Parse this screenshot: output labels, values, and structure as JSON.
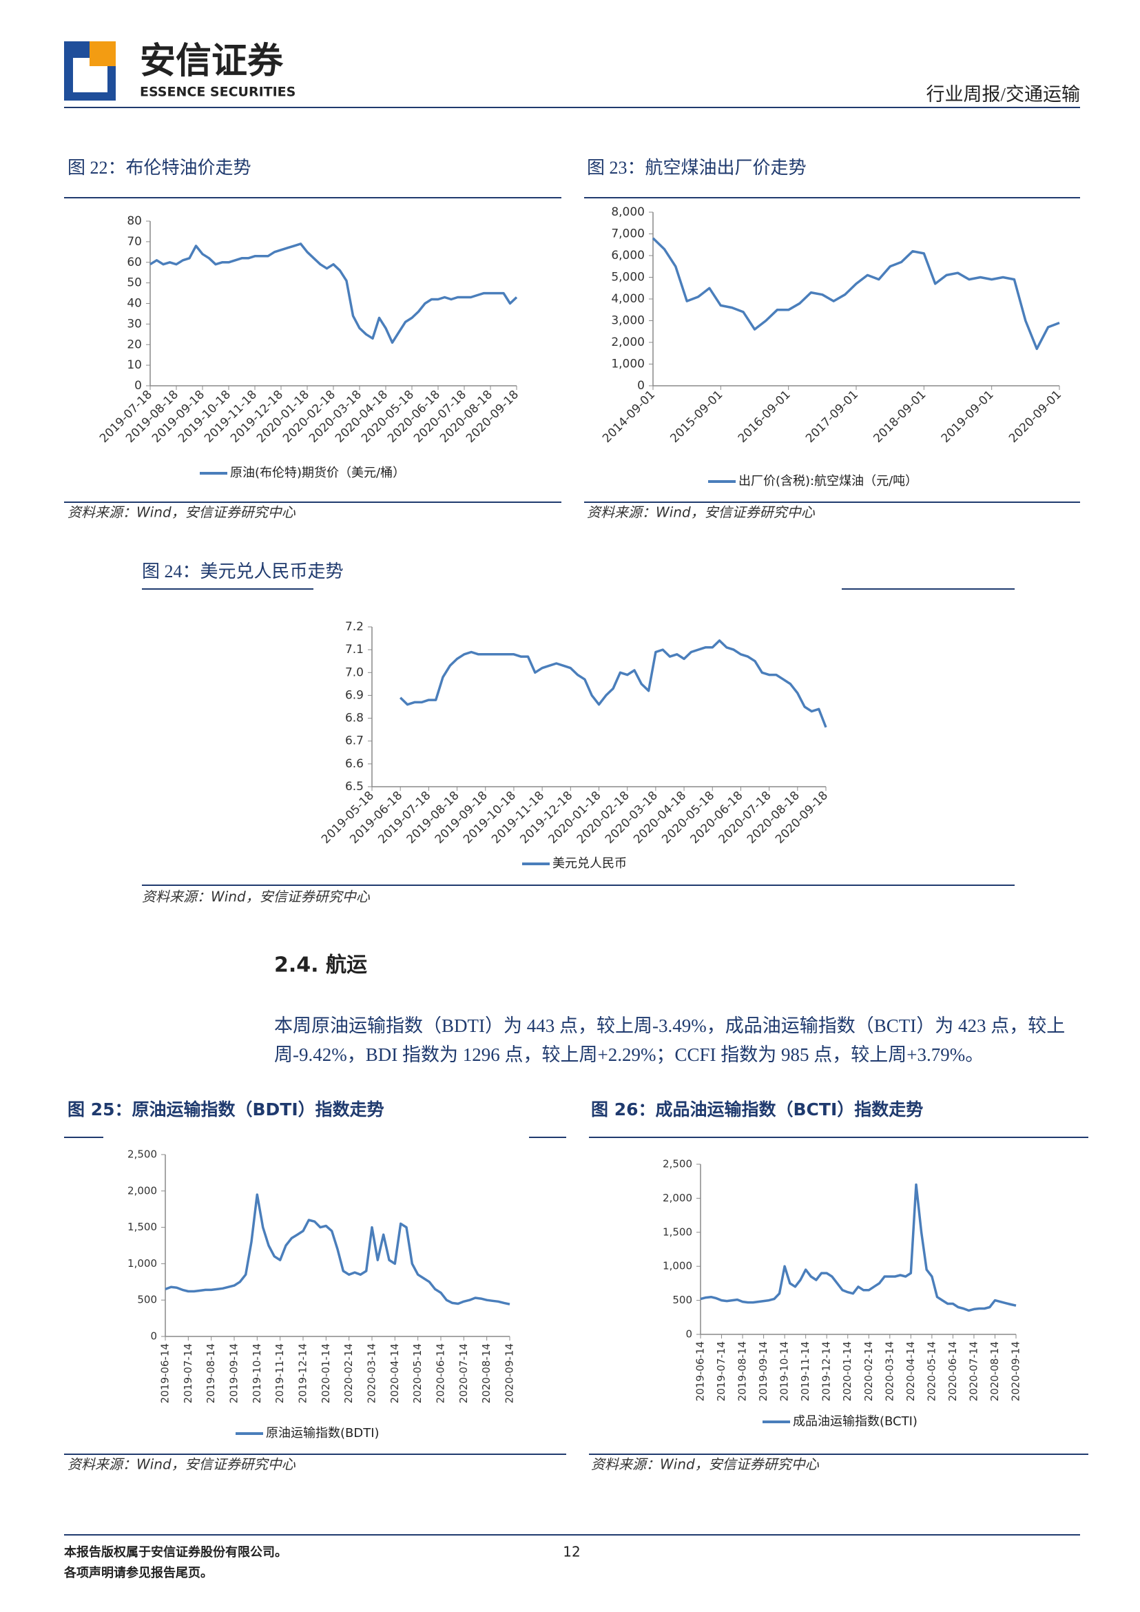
{
  "header": {
    "logo_cn": "安信证券",
    "logo_en": "ESSENCE SECURITIES",
    "report_type": "行业周报/交通运输"
  },
  "section": {
    "heading": "2.4. 航运",
    "paragraph": "本周原油运输指数（BDTI）为 443 点，较上周-3.49%，成品油运输指数（BCTI）为 423 点，较上周-9.42%，BDI 指数为 1296 点，较上周+2.29%；CCFI 指数为 985 点，较上周+3.79%。"
  },
  "footer": {
    "copyright": "本报告版权属于安信证券股份有限公司。",
    "notice": "各项声明请参见报告尾页。",
    "page": "12"
  },
  "chart_data": [
    {
      "type": "line",
      "title": "图 22：布伦特油价走势",
      "source": "资料来源：Wind，安信证券研究中心",
      "categories": [
        "2019-07-18",
        null,
        null,
        null,
        "2019-08-18",
        null,
        null,
        null,
        "2019-09-18",
        null,
        null,
        null,
        "2019-10-18",
        null,
        null,
        null,
        "2019-11-18",
        null,
        null,
        null,
        "2019-12-18",
        null,
        null,
        null,
        "2020-01-18",
        null,
        null,
        null,
        "2020-02-18",
        null,
        null,
        null,
        "2020-03-18",
        null,
        null,
        null,
        "2020-04-18",
        null,
        null,
        null,
        "2020-05-18",
        null,
        null,
        null,
        "2020-06-18",
        null,
        null,
        null,
        "2020-07-18",
        null,
        null,
        null,
        "2020-08-18",
        null,
        null,
        null,
        "2020-09-18"
      ],
      "series": [
        {
          "name": "原油(布伦特)期货价（美元/桶）",
          "color": "#4a7ebb",
          "values": [
            59,
            61,
            59,
            60,
            59,
            61,
            62,
            68,
            64,
            62,
            59,
            60,
            60,
            61,
            62,
            62,
            63,
            63,
            63,
            65,
            66,
            67,
            68,
            69,
            65,
            62,
            59,
            57,
            59,
            56,
            51,
            34,
            28,
            25,
            23,
            33,
            28,
            21,
            26,
            31,
            33,
            36,
            40,
            42,
            42,
            43,
            42,
            43,
            43,
            43,
            44,
            45,
            45,
            45,
            45,
            40,
            43
          ]
        }
      ],
      "ylim": [
        0,
        80
      ],
      "yticks": [
        0,
        10,
        20,
        30,
        40,
        50,
        60,
        70,
        80
      ]
    },
    {
      "type": "line",
      "title": "图 23：航空煤油出厂价走势",
      "source": "资料来源：Wind，安信证券研究中心",
      "categories": [
        "2014-09-01",
        null,
        null,
        null,
        null,
        null,
        "2015-09-01",
        null,
        null,
        null,
        null,
        null,
        "2016-09-01",
        null,
        null,
        null,
        null,
        null,
        "2017-09-01",
        null,
        null,
        null,
        null,
        null,
        "2018-09-01",
        null,
        null,
        null,
        null,
        null,
        "2019-09-01",
        null,
        null,
        null,
        null,
        null,
        "2020-09-01"
      ],
      "series": [
        {
          "name": "出厂价(含税):航空煤油（元/吨）",
          "color": "#4a7ebb",
          "values": [
            6800,
            6300,
            5500,
            3900,
            4100,
            4500,
            3700,
            3600,
            3400,
            2600,
            3000,
            3500,
            3500,
            3800,
            4300,
            4200,
            3900,
            4200,
            4700,
            5100,
            4900,
            5500,
            5700,
            6200,
            6100,
            4700,
            5100,
            5200,
            4900,
            5000,
            4900,
            5000,
            4900,
            3000,
            1700,
            2700,
            2900
          ]
        }
      ],
      "ylim": [
        0,
        8000
      ],
      "yticks": [
        0,
        {
          "value": 1000,
          "label": "1,000"
        },
        {
          "value": 2000,
          "label": "2,000"
        },
        {
          "value": 3000,
          "label": "3,000"
        },
        {
          "value": 4000,
          "label": "4,000"
        },
        {
          "value": 5000,
          "label": "5,000"
        },
        {
          "value": 6000,
          "label": "6,000"
        },
        {
          "value": 7000,
          "label": "7,000"
        },
        {
          "value": 8000,
          "label": "8,000"
        }
      ]
    },
    {
      "type": "line",
      "title": "图 24：美元兑人民币走势",
      "source": "资料来源：Wind，安信证券研究中心",
      "categories": [
        "2019-05-18",
        null,
        null,
        null,
        "2019-06-18",
        null,
        null,
        null,
        "2019-07-18",
        null,
        null,
        null,
        "2019-08-18",
        null,
        null,
        null,
        "2019-09-18",
        null,
        null,
        null,
        "2019-10-18",
        null,
        null,
        null,
        "2019-11-18",
        null,
        null,
        null,
        "2019-12-18",
        null,
        null,
        null,
        "2020-01-18",
        null,
        null,
        null,
        "2020-02-18",
        null,
        null,
        null,
        "2020-03-18",
        null,
        null,
        null,
        "2020-04-18",
        null,
        null,
        null,
        "2020-05-18",
        null,
        null,
        null,
        "2020-06-18",
        null,
        null,
        null,
        "2020-07-18",
        null,
        null,
        null,
        "2020-08-18",
        null,
        null,
        null,
        "2020-09-18"
      ],
      "series": [
        {
          "name": "美元兑人民币",
          "color": "#4a7ebb",
          "values": [
            null,
            null,
            null,
            null,
            6.89,
            6.86,
            6.87,
            6.87,
            6.88,
            6.88,
            6.98,
            7.03,
            7.06,
            7.08,
            7.09,
            7.08,
            7.08,
            7.08,
            7.08,
            7.08,
            7.08,
            7.07,
            7.07,
            7.0,
            7.02,
            7.03,
            7.04,
            7.03,
            7.02,
            6.99,
            6.97,
            6.9,
            6.86,
            6.9,
            6.93,
            7.0,
            6.99,
            7.01,
            6.95,
            6.92,
            7.09,
            7.1,
            7.07,
            7.08,
            7.06,
            7.09,
            7.1,
            7.11,
            7.11,
            7.14,
            7.11,
            7.1,
            7.08,
            7.07,
            7.05,
            7.0,
            6.99,
            6.99,
            6.97,
            6.95,
            6.91,
            6.85,
            6.83,
            6.84,
            6.76
          ]
        }
      ],
      "ylim": [
        6.5,
        7.2
      ],
      "yticks": [
        6.5,
        6.6,
        6.7,
        6.8,
        6.9,
        {
          "value": 7,
          "label": "7.0"
        },
        7.1,
        7.2
      ]
    },
    {
      "type": "line",
      "title": "图 25：原油运输指数（BDTI）指数走势",
      "source": "资料来源：Wind，安信证券研究中心",
      "categories": [
        "2019-06-14",
        null,
        null,
        null,
        "2019-07-14",
        null,
        null,
        null,
        "2019-08-14",
        null,
        null,
        null,
        "2019-09-14",
        null,
        null,
        null,
        "2019-10-14",
        null,
        null,
        null,
        "2019-11-14",
        null,
        null,
        null,
        "2019-12-14",
        null,
        null,
        null,
        "2020-01-14",
        null,
        null,
        null,
        "2020-02-14",
        null,
        null,
        null,
        "2020-03-14",
        null,
        null,
        null,
        "2020-04-14",
        null,
        null,
        null,
        "2020-05-14",
        null,
        null,
        null,
        "2020-06-14",
        null,
        null,
        null,
        "2020-07-14",
        null,
        null,
        null,
        "2020-08-14",
        null,
        null,
        null,
        "2020-09-14"
      ],
      "series": [
        {
          "name": "原油运输指数(BDTI)",
          "color": "#4a7ebb",
          "values": [
            650,
            680,
            670,
            640,
            620,
            620,
            630,
            640,
            640,
            650,
            660,
            680,
            700,
            750,
            850,
            1300,
            1950,
            1500,
            1250,
            1100,
            1050,
            1250,
            1350,
            1400,
            1450,
            1600,
            1580,
            1500,
            1520,
            1450,
            1200,
            900,
            850,
            880,
            850,
            900,
            1500,
            1050,
            1400,
            1050,
            1000,
            1550,
            1500,
            1000,
            850,
            800,
            750,
            650,
            600,
            500,
            460,
            450,
            480,
            500,
            530,
            520,
            500,
            490,
            480,
            460,
            443
          ]
        }
      ],
      "ylim": [
        0,
        2500
      ],
      "yticks": [
        0,
        500,
        {
          "value": 1000,
          "label": "1,000"
        },
        {
          "value": 1500,
          "label": "1,500"
        },
        {
          "value": 2000,
          "label": "2,000"
        },
        {
          "value": 2500,
          "label": "2,500"
        }
      ]
    },
    {
      "type": "line",
      "title": "图 26：成品油运输指数（BCTI）指数走势",
      "source": "资料来源：Wind，安信证券研究中心",
      "categories": [
        "2019-06-14",
        null,
        null,
        null,
        "2019-07-14",
        null,
        null,
        null,
        "2019-08-14",
        null,
        null,
        null,
        "2019-09-14",
        null,
        null,
        null,
        "2019-10-14",
        null,
        null,
        null,
        "2019-11-14",
        null,
        null,
        null,
        "2019-12-14",
        null,
        null,
        null,
        "2020-01-14",
        null,
        null,
        null,
        "2020-02-14",
        null,
        null,
        null,
        "2020-03-14",
        null,
        null,
        null,
        "2020-04-14",
        null,
        null,
        null,
        "2020-05-14",
        null,
        null,
        null,
        "2020-06-14",
        null,
        null,
        null,
        "2020-07-14",
        null,
        null,
        null,
        "2020-08-14",
        null,
        null,
        null,
        "2020-09-14"
      ],
      "series": [
        {
          "name": "成品油运输指数(BCTI)",
          "color": "#4a7ebb",
          "values": [
            520,
            540,
            550,
            530,
            500,
            490,
            500,
            510,
            480,
            470,
            470,
            480,
            490,
            500,
            520,
            600,
            1000,
            750,
            700,
            800,
            950,
            850,
            800,
            900,
            900,
            850,
            750,
            650,
            620,
            600,
            700,
            650,
            650,
            700,
            750,
            850,
            850,
            850,
            870,
            850,
            900,
            2200,
            1500,
            950,
            850,
            550,
            500,
            450,
            450,
            400,
            380,
            350,
            370,
            380,
            380,
            400,
            500,
            480,
            460,
            440,
            423
          ]
        }
      ],
      "ylim": [
        0,
        2500
      ],
      "yticks": [
        0,
        500,
        {
          "value": 1000,
          "label": "1,000"
        },
        {
          "value": 1500,
          "label": "1,500"
        },
        {
          "value": 2000,
          "label": "2,000"
        },
        {
          "value": 2500,
          "label": "2,500"
        }
      ]
    }
  ]
}
